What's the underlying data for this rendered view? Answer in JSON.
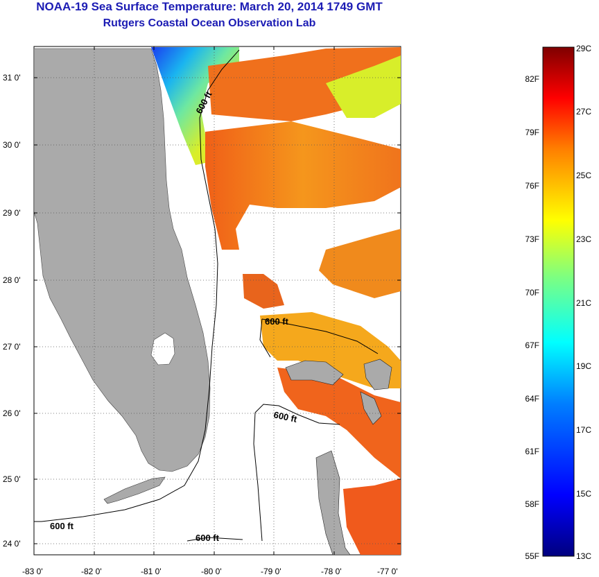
{
  "header": {
    "title": "NOAA-19 Sea Surface Temperature:  March 20, 2014 1749 GMT",
    "subtitle": "Rutgers Coastal Ocean Observation Lab"
  },
  "map": {
    "lat_ticks": [
      {
        "value": 31,
        "label": "31 0'"
      },
      {
        "value": 30,
        "label": "30 0'"
      },
      {
        "value": 29,
        "label": "29 0'"
      },
      {
        "value": 28,
        "label": "28 0'"
      },
      {
        "value": 27,
        "label": "27 0'"
      },
      {
        "value": 26,
        "label": "26 0'"
      },
      {
        "value": 25,
        "label": "25 0'"
      },
      {
        "value": 24,
        "label": "24 0'"
      }
    ],
    "lon_ticks": [
      {
        "value": -83,
        "label": "-83 0'"
      },
      {
        "value": -82,
        "label": "-82 0'"
      },
      {
        "value": -81,
        "label": "-81 0'"
      },
      {
        "value": -80,
        "label": "-80 0'"
      },
      {
        "value": -79,
        "label": "-79 0'"
      },
      {
        "value": -78,
        "label": "-78 0'"
      },
      {
        "value": -77,
        "label": "-77 0'"
      }
    ],
    "contour_labels": [
      "600 ft",
      "600 ft",
      "600 ft",
      "600 ft",
      "600 ft"
    ],
    "colors": {
      "land": "#aaaaaa",
      "ocean_nodata": "#ffffff",
      "sst_warm": "#f06a1c",
      "sst_mid": "#f5b01c",
      "sst_cool": "#d8ee2a",
      "sst_cold": "#1a5cf0"
    }
  },
  "colorbar": {
    "fahrenheit_labels": [
      "82F",
      "79F",
      "76F",
      "73F",
      "70F",
      "67F",
      "64F",
      "61F",
      "58F",
      "55F"
    ],
    "celsius_labels": [
      "29C",
      "27C",
      "25C",
      "23C",
      "21C",
      "19C",
      "17C",
      "15C",
      "13C"
    ],
    "range_c": [
      13,
      29
    ],
    "gradient": [
      "#00007f",
      "#0000ff",
      "#007fff",
      "#00ffff",
      "#7fff7f",
      "#ffff00",
      "#ff7f00",
      "#ff0000",
      "#7f0000"
    ]
  }
}
